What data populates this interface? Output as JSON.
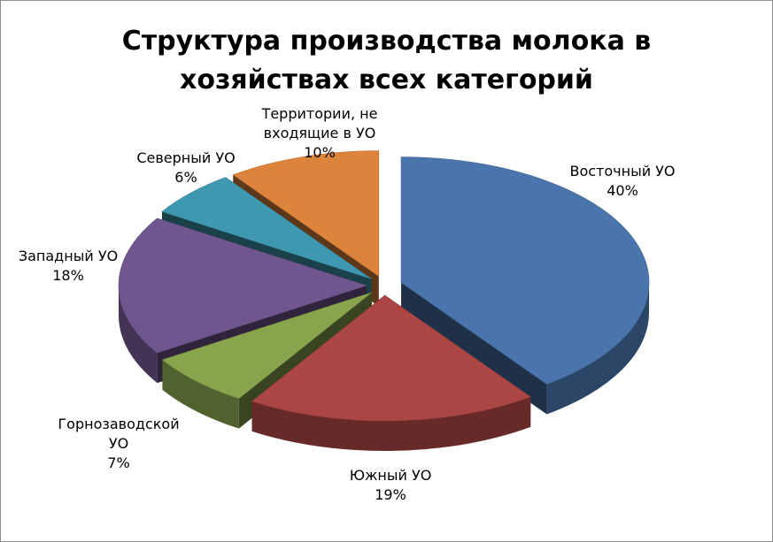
{
  "chart_data": {
    "type": "pie",
    "title_lines": [
      "Структура производства молока в",
      "хозяйствах всех категорий"
    ],
    "slices": [
      {
        "label_lines": [
          "Восточный УО"
        ],
        "pct_label": "40%",
        "value": 40,
        "color": "#4a74ac"
      },
      {
        "label_lines": [
          "Южный УО"
        ],
        "pct_label": "19%",
        "value": 19,
        "color": "#ab4644"
      },
      {
        "label_lines": [
          "Горнозаводской",
          "УО"
        ],
        "pct_label": "7%",
        "value": 7,
        "color": "#88a44c"
      },
      {
        "label_lines": [
          "Западный УО"
        ],
        "pct_label": "18%",
        "value": 18,
        "color": "#70568e"
      },
      {
        "label_lines": [
          "Северный УО"
        ],
        "pct_label": "6%",
        "value": 6,
        "color": "#3e98b0"
      },
      {
        "label_lines": [
          "Территории, не",
          "входящие в УО"
        ],
        "pct_label": "10%",
        "value": 10,
        "color": "#dc843c"
      }
    ],
    "style": "3d-exploded-pie",
    "legend": "none"
  }
}
